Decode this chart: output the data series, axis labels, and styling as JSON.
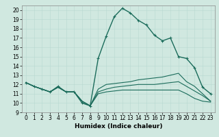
{
  "bg_color": "#d0e8e0",
  "grid_color": "#b8d8d0",
  "line_color": "#1a6b5a",
  "series": [
    {
      "x": [
        0,
        1,
        2,
        3,
        4,
        5,
        6,
        7,
        8,
        9,
        10,
        11,
        12,
        13,
        14,
        15,
        16,
        17,
        18,
        19,
        20,
        21,
        22,
        23
      ],
      "y": [
        12.2,
        11.8,
        11.5,
        11.2,
        11.8,
        11.2,
        11.2,
        10.0,
        9.7,
        14.8,
        17.2,
        19.3,
        20.2,
        19.7,
        18.9,
        18.4,
        17.3,
        16.7,
        17.0,
        15.0,
        14.8,
        13.8,
        11.7,
        11.0
      ],
      "marker": "+",
      "lw": 1.0
    },
    {
      "x": [
        0,
        1,
        2,
        3,
        4,
        5,
        6,
        7,
        8,
        9,
        10,
        11,
        12,
        13,
        14,
        15,
        16,
        17,
        18,
        19,
        20,
        21,
        22,
        23
      ],
      "y": [
        12.2,
        11.8,
        11.5,
        11.2,
        11.7,
        11.2,
        11.2,
        10.2,
        9.7,
        11.5,
        12.0,
        12.1,
        12.2,
        12.3,
        12.5,
        12.6,
        12.7,
        12.8,
        13.0,
        13.2,
        12.3,
        11.8,
        11.0,
        10.2
      ],
      "marker": "",
      "lw": 0.8
    },
    {
      "x": [
        0,
        1,
        2,
        3,
        4,
        5,
        6,
        7,
        8,
        9,
        10,
        11,
        12,
        13,
        14,
        15,
        16,
        17,
        18,
        19,
        20,
        21,
        22,
        23
      ],
      "y": [
        12.2,
        11.8,
        11.5,
        11.2,
        11.7,
        11.2,
        11.2,
        10.2,
        9.7,
        11.2,
        11.5,
        11.7,
        11.8,
        11.9,
        12.0,
        12.0,
        12.0,
        12.1,
        12.2,
        12.3,
        11.8,
        11.3,
        10.8,
        10.2
      ],
      "marker": "",
      "lw": 0.8
    },
    {
      "x": [
        0,
        1,
        2,
        3,
        4,
        5,
        6,
        7,
        8,
        9,
        10,
        11,
        12,
        13,
        14,
        15,
        16,
        17,
        18,
        19,
        20,
        21,
        22,
        23
      ],
      "y": [
        12.2,
        11.8,
        11.5,
        11.2,
        11.7,
        11.2,
        11.2,
        10.2,
        9.7,
        11.0,
        11.2,
        11.3,
        11.4,
        11.4,
        11.4,
        11.4,
        11.4,
        11.4,
        11.4,
        11.4,
        11.0,
        10.5,
        10.2,
        10.1
      ],
      "marker": "",
      "lw": 0.8
    }
  ],
  "xlabel": "Humidex (Indice chaleur)",
  "xlim": [
    -0.5,
    23.5
  ],
  "ylim": [
    9,
    20.5
  ],
  "xticks": [
    0,
    1,
    2,
    3,
    4,
    5,
    6,
    7,
    8,
    9,
    10,
    11,
    12,
    13,
    14,
    15,
    16,
    17,
    18,
    19,
    20,
    21,
    22,
    23
  ],
  "yticks": [
    9,
    10,
    11,
    12,
    13,
    14,
    15,
    16,
    17,
    18,
    19,
    20
  ],
  "tick_fontsize": 5.5,
  "xlabel_fontsize": 6.5
}
